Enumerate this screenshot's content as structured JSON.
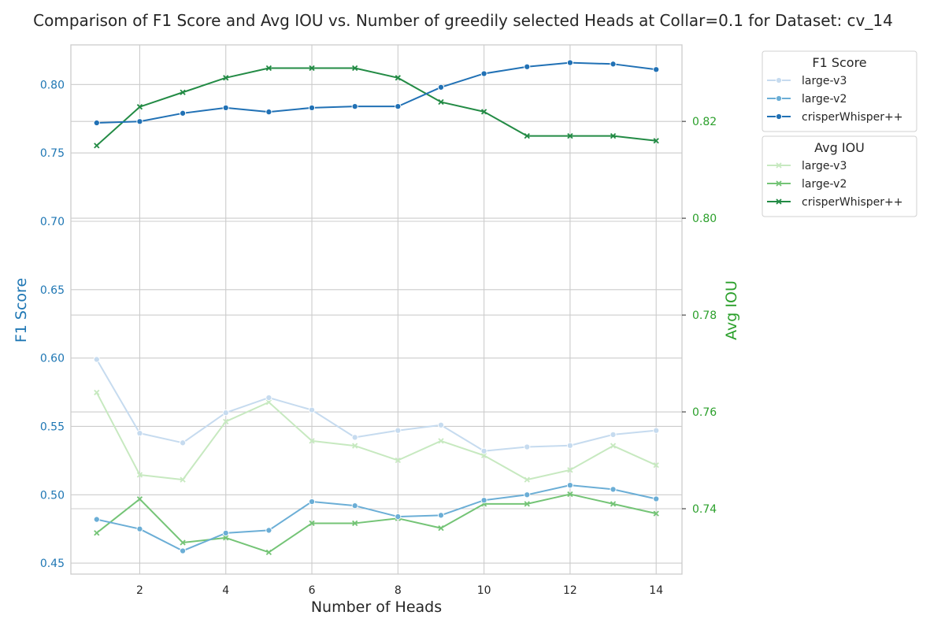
{
  "chart_data": {
    "type": "line",
    "title": "Comparison of F1 Score and Avg IOU vs. Number of greedily selected Heads at Collar=0.1 for Dataset: cv_14",
    "xlabel": "Number of Heads",
    "ylabel_left": "F1 Score",
    "ylabel_right": "Avg IOU",
    "xlim": [
      0.4,
      14.6
    ],
    "ylim_left": [
      0.442,
      0.829
    ],
    "ylim_right": [
      0.7265,
      0.8358
    ],
    "x_ticks": [
      2,
      4,
      6,
      8,
      10,
      12,
      14
    ],
    "y_left_ticks": [
      0.45,
      0.5,
      0.55,
      0.6,
      0.65,
      0.7,
      0.75,
      0.8
    ],
    "y_right_ticks": [
      0.74,
      0.76,
      0.78,
      0.8,
      0.82
    ],
    "grid": true,
    "x": [
      1,
      2,
      3,
      4,
      5,
      6,
      7,
      8,
      9,
      10,
      11,
      12,
      13,
      14
    ],
    "f1_series": [
      {
        "name": "large-v3",
        "color": "#c6dbef",
        "marker": "circle",
        "values": [
          0.599,
          0.545,
          0.538,
          0.56,
          0.571,
          0.562,
          0.542,
          0.547,
          0.551,
          0.532,
          0.535,
          0.536,
          0.544,
          0.547
        ]
      },
      {
        "name": "large-v2",
        "color": "#6baed6",
        "marker": "circle",
        "values": [
          0.482,
          0.475,
          0.459,
          0.472,
          0.474,
          0.495,
          0.492,
          0.484,
          0.485,
          0.496,
          0.5,
          0.507,
          0.504,
          0.497
        ]
      },
      {
        "name": "crisperWhisper++",
        "color": "#2171b5",
        "marker": "circle",
        "values": [
          0.772,
          0.773,
          0.779,
          0.783,
          0.78,
          0.783,
          0.784,
          0.784,
          0.798,
          0.808,
          0.813,
          0.816,
          0.815,
          0.811
        ]
      }
    ],
    "iou_series": [
      {
        "name": "large-v3",
        "color": "#c7e9c0",
        "marker": "x",
        "values": [
          0.764,
          0.747,
          0.746,
          0.758,
          0.762,
          0.754,
          0.753,
          0.75,
          0.754,
          0.751,
          0.746,
          0.748,
          0.753,
          0.749
        ]
      },
      {
        "name": "large-v2",
        "color": "#74c476",
        "marker": "x",
        "values": [
          0.735,
          0.742,
          0.733,
          0.734,
          0.731,
          0.737,
          0.737,
          0.738,
          0.736,
          0.741,
          0.741,
          0.743,
          0.741,
          0.739
        ]
      },
      {
        "name": "crisperWhisper++",
        "color": "#238b45",
        "marker": "x",
        "values": [
          0.815,
          0.823,
          0.826,
          0.829,
          0.831,
          0.831,
          0.831,
          0.829,
          0.824,
          0.822,
          0.817,
          0.817,
          0.817,
          0.816
        ]
      }
    ],
    "legends": [
      {
        "title": "F1 Score",
        "group": "f1_series"
      },
      {
        "title": "Avg IOU",
        "group": "iou_series"
      }
    ],
    "colors": {
      "left_axis": "#1f77b4",
      "right_axis": "#2ca02c",
      "grid": "#cccccc",
      "frame": "#cccccc",
      "text": "#262626"
    }
  }
}
